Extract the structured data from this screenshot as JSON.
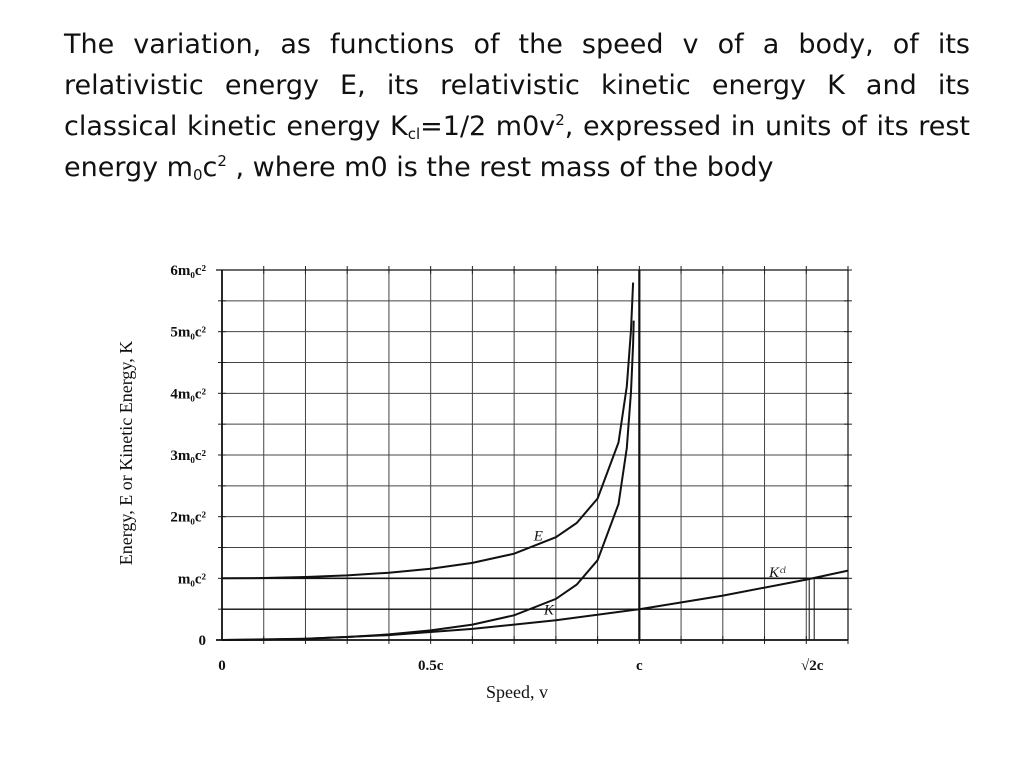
{
  "caption": {
    "part1": "The variation, as functions of the speed v of a body, of its relativistic energy E, its relativistic kinetic energy K and its classical kinetic energy K",
    "sub_cl": "cl",
    "part2": "=1/2 m0v",
    "sup_2a": "2",
    "part3": ", expressed in units of its rest energy m",
    "sub_0": "0",
    "part4": "c",
    "sup_2b": "2",
    "part5": " , where m0 is the rest mass of the body"
  },
  "chart_data": {
    "type": "line",
    "xlabel": "Speed, v",
    "ylabel": "Energy, E or Kinetic Energy, K",
    "xlim": [
      0,
      1.5
    ],
    "ylim": [
      0,
      6
    ],
    "x_ticks": [
      {
        "value": 0,
        "label": "0"
      },
      {
        "value": 0.5,
        "label": "0.5c"
      },
      {
        "value": 1.0,
        "label": "c"
      },
      {
        "value": 1.41421,
        "label": "√2c"
      }
    ],
    "y_ticks": [
      {
        "value": 0,
        "label": "0"
      },
      {
        "value": 1,
        "label": "m₀c²"
      },
      {
        "value": 2,
        "label": "2m₀c²"
      },
      {
        "value": 3,
        "label": "3m₀c²"
      },
      {
        "value": 4,
        "label": "4m₀c²"
      },
      {
        "value": 5,
        "label": "5m₀c²"
      },
      {
        "value": 6,
        "label": "6m₀c²"
      }
    ],
    "grid": true,
    "series": [
      {
        "name": "E",
        "x": [
          0,
          0.1,
          0.2,
          0.3,
          0.4,
          0.5,
          0.6,
          0.7,
          0.8,
          0.85,
          0.9,
          0.95,
          0.97,
          0.98,
          0.985
        ],
        "y": [
          1.0,
          1.005,
          1.021,
          1.048,
          1.091,
          1.155,
          1.25,
          1.4,
          1.667,
          1.898,
          2.294,
          3.203,
          4.113,
          5.025,
          5.795
        ]
      },
      {
        "name": "K",
        "x": [
          0,
          0.1,
          0.2,
          0.3,
          0.4,
          0.5,
          0.6,
          0.7,
          0.8,
          0.85,
          0.9,
          0.95,
          0.97,
          0.98,
          0.985,
          0.9865
        ],
        "y": [
          0.0,
          0.005,
          0.021,
          0.048,
          0.091,
          0.155,
          0.25,
          0.4,
          0.667,
          0.898,
          1.294,
          2.203,
          3.113,
          4.025,
          4.795,
          5.18
        ]
      },
      {
        "name": "Kᶜˡ",
        "x": [
          0,
          0.2,
          0.4,
          0.6,
          0.8,
          1.0,
          1.2,
          1.4,
          1.5
        ],
        "y": [
          0,
          0.02,
          0.08,
          0.18,
          0.32,
          0.5,
          0.72,
          0.98,
          1.125
        ]
      }
    ]
  }
}
